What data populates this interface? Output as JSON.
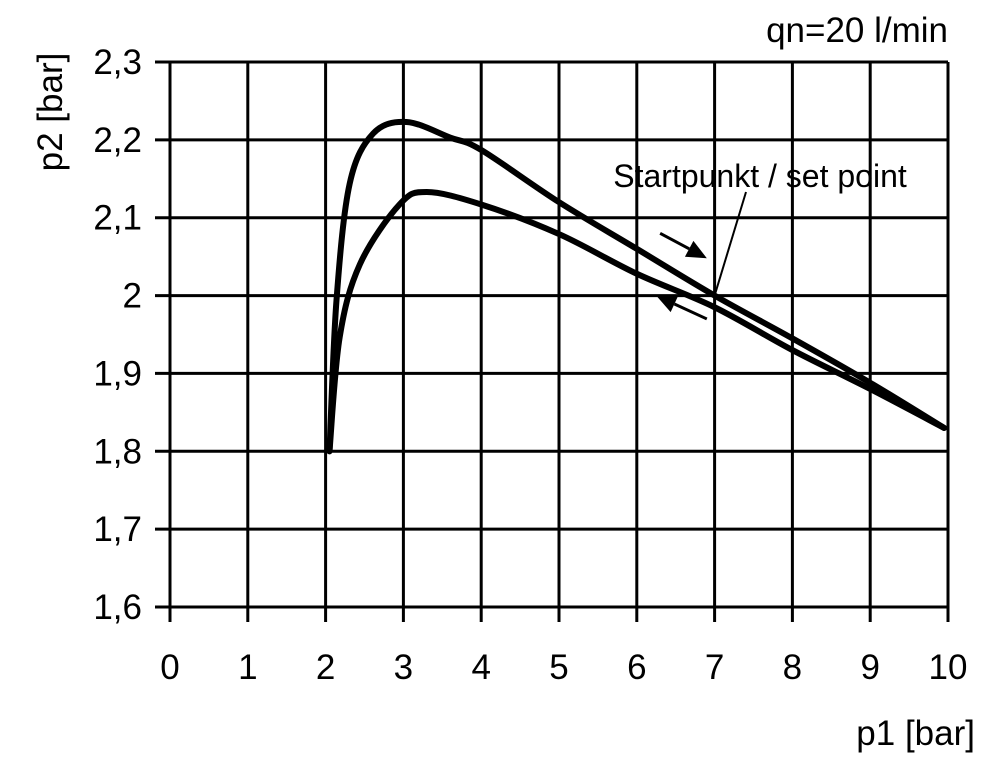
{
  "chart_data": {
    "type": "line",
    "title": "qn=20 l/min",
    "xlabel": "p1 [bar]",
    "ylabel": "p2 [bar]",
    "xlim": [
      0,
      10
    ],
    "ylim": [
      1.6,
      2.3
    ],
    "grid": true,
    "x_ticks": [
      "0",
      "1",
      "2",
      "3",
      "4",
      "5",
      "6",
      "7",
      "8",
      "9",
      "10"
    ],
    "y_ticks": [
      "1,6",
      "1,7",
      "1,8",
      "1,9",
      "2",
      "2,1",
      "2,2",
      "2,3"
    ],
    "series": [
      {
        "points": [
          [
            2.05,
            1.8
          ],
          [
            2.14,
            1.994
          ],
          [
            2.31,
            2.144
          ],
          [
            2.61,
            2.208
          ],
          [
            3.04,
            2.223
          ],
          [
            3.6,
            2.203
          ],
          [
            4.0,
            2.187
          ],
          [
            5.0,
            2.12
          ],
          [
            6.0,
            2.06
          ],
          [
            7.0,
            2.0
          ],
          [
            8.0,
            1.945
          ],
          [
            9.0,
            1.888
          ],
          [
            9.95,
            1.83
          ]
        ]
      },
      {
        "points": [
          [
            2.05,
            1.8
          ],
          [
            2.18,
            1.946
          ],
          [
            2.44,
            2.04
          ],
          [
            2.95,
            2.117
          ],
          [
            3.3,
            2.133
          ],
          [
            4.0,
            2.117
          ],
          [
            5.0,
            2.079
          ],
          [
            6.0,
            2.028
          ],
          [
            7.0,
            1.985
          ],
          [
            8.0,
            1.93
          ],
          [
            9.0,
            1.88
          ],
          [
            9.95,
            1.83
          ]
        ]
      }
    ],
    "annotations": [
      {
        "text": "Startpunkt / set point",
        "points_to": [
          7,
          2.0
        ]
      }
    ],
    "arrows": [
      {
        "direction": "increasing p1",
        "from": [
          6.3,
          2.08
        ],
        "to": [
          6.9,
          2.048
        ]
      },
      {
        "direction": "decreasing p1",
        "from": [
          6.9,
          1.97
        ],
        "to": [
          6.25,
          2.0
        ]
      }
    ],
    "colors": {
      "line": "#000000",
      "background": "#ffffff"
    }
  }
}
